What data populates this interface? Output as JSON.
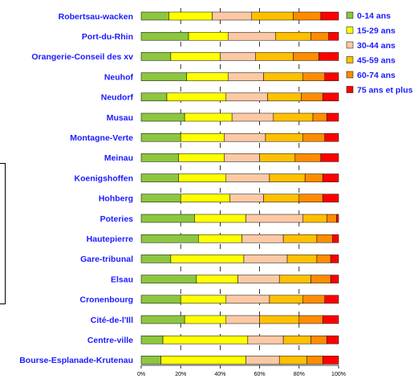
{
  "chart_data": {
    "type": "bar",
    "stacked": true,
    "normalized": true,
    "orientation": "horizontal",
    "categories": [
      "Robertsau-wacken",
      "Port-du-Rhin",
      "Orangerie-Conseil des xv",
      "Neuhof",
      "Neudorf",
      "Musau",
      "Montagne-Verte",
      "Meinau",
      "Koenigshoffen",
      "Hohberg",
      "Poteries",
      "Hautepierre",
      "Gare-tribunal",
      "Elsau",
      "Cronenbourg",
      "Cité-de-l'Ill",
      "Centre-ville",
      "Bourse-Esplanade-Krutenau"
    ],
    "series": [
      {
        "name": "0-14 ans",
        "color": "#8dc63f",
        "values": [
          14,
          24,
          15,
          23,
          13,
          22,
          20,
          19,
          19,
          20,
          27,
          29,
          15,
          28,
          20,
          22,
          11,
          10
        ]
      },
      {
        "name": "15-29 ans",
        "color": "#ffff00",
        "values": [
          22,
          20,
          25,
          21,
          30,
          24,
          22,
          23,
          24,
          25,
          26,
          22,
          37,
          21,
          23,
          21,
          43,
          43
        ]
      },
      {
        "name": "30-44 ans",
        "color": "#fcc9a4",
        "values": [
          20,
          24,
          18,
          18,
          21,
          21,
          21,
          18,
          22,
          17,
          29,
          21,
          22,
          21,
          22,
          17,
          18,
          17
        ]
      },
      {
        "name": "45-59 ans",
        "color": "#ffc000",
        "values": [
          21,
          18,
          19,
          20,
          17,
          20,
          19,
          18,
          18,
          18,
          12,
          17,
          15,
          16,
          17,
          20,
          14,
          14
        ]
      },
      {
        "name": "60-74 ans",
        "color": "#ff8c00",
        "values": [
          14,
          9,
          13,
          11,
          11,
          7,
          11,
          13,
          9,
          12,
          5,
          8,
          7,
          10,
          11,
          12,
          8,
          8
        ]
      },
      {
        "name": "75 ans et plus",
        "color": "#ff0000",
        "values": [
          9,
          5,
          10,
          7,
          8,
          6,
          7,
          9,
          8,
          8,
          1,
          3,
          4,
          4,
          7,
          8,
          6,
          8
        ]
      }
    ],
    "xticks": [
      "0%",
      "20%",
      "40%",
      "60%",
      "80%",
      "100%"
    ],
    "xlim": [
      0,
      100
    ],
    "legend": "right",
    "grid": false
  }
}
